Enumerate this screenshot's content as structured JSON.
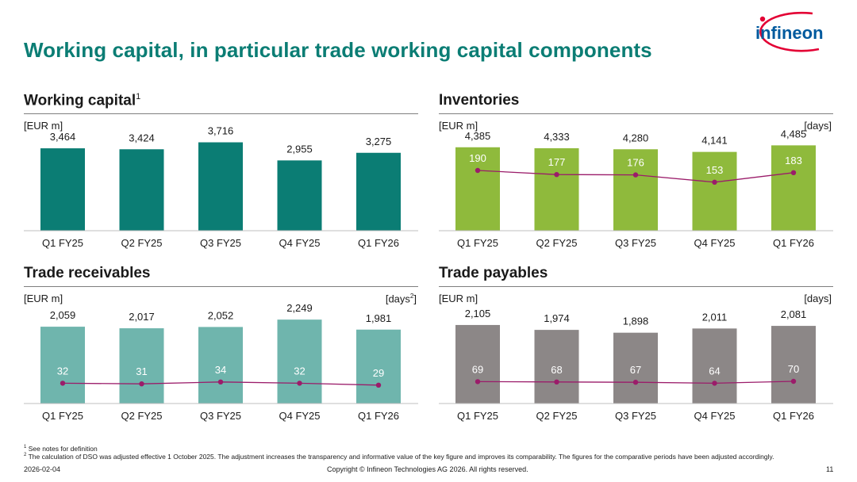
{
  "page": {
    "title": "Working capital, in particular trade working capital components",
    "logo_text": "infineon",
    "colors": {
      "brand": "#0b7d74",
      "logo_red": "#e30034",
      "logo_blue": "#005a9e"
    }
  },
  "chart_data": [
    {
      "type": "bar",
      "title": "Working capital",
      "title_sup": "1",
      "ylabel": "[EUR m]",
      "categories": [
        "Q1 FY25",
        "Q2 FY25",
        "Q3 FY25",
        "Q4 FY25",
        "Q1 FY26"
      ],
      "values": [
        3464,
        3424,
        3716,
        2955,
        3275
      ],
      "value_labels": [
        "3,464",
        "3,424",
        "3,716",
        "2,955",
        "3,275"
      ],
      "ylim": [
        0,
        4000
      ],
      "bar_color": "#0b7d74",
      "grid": false,
      "legend": "none"
    },
    {
      "type": "bar",
      "title": "Inventories",
      "ylabel": "[EUR m]",
      "y2label": "[days]",
      "categories": [
        "Q1 FY25",
        "Q2 FY25",
        "Q3 FY25",
        "Q4 FY25",
        "Q1 FY26"
      ],
      "values": [
        4385,
        4333,
        4280,
        4141,
        4485
      ],
      "value_labels": [
        "4,385",
        "4,333",
        "4,280",
        "4,141",
        "4,485"
      ],
      "ylim": [
        0,
        5000
      ],
      "bar_color": "#8fba3c",
      "days": [
        190,
        177,
        176,
        153,
        183
      ],
      "days_labels": [
        "190",
        "177",
        "176",
        "153",
        "183"
      ],
      "y2lim": [
        0,
        300
      ],
      "line_color": "#9b1c6a",
      "grid": false,
      "legend": "none"
    },
    {
      "type": "bar",
      "title": "Trade receivables",
      "ylabel": "[EUR m]",
      "y2label": "[days",
      "y2label_sup": "2",
      "y2label_end": "]",
      "categories": [
        "Q1 FY25",
        "Q2 FY25",
        "Q3 FY25",
        "Q4 FY25",
        "Q1 FY26"
      ],
      "values": [
        2059,
        2017,
        2052,
        2249,
        1981
      ],
      "value_labels": [
        "2,059",
        "2,017",
        "2,052",
        "2,249",
        "1,981"
      ],
      "ylim": [
        0,
        2550
      ],
      "bar_color": "#6fb5ad",
      "days": [
        32,
        31,
        34,
        32,
        29
      ],
      "days_labels": [
        "32",
        "31",
        "34",
        "32",
        "29"
      ],
      "y2lim": [
        0,
        150
      ],
      "line_color": "#9b1c6a",
      "grid": false,
      "legend": "none"
    },
    {
      "type": "bar",
      "title": "Trade payables",
      "ylabel": "[EUR m]",
      "y2label": "[days]",
      "categories": [
        "Q1 FY25",
        "Q2 FY25",
        "Q3 FY25",
        "Q4 FY25",
        "Q1 FY26"
      ],
      "values": [
        2105,
        1974,
        1898,
        2011,
        2081
      ],
      "value_labels": [
        "2,105",
        "1,974",
        "1,898",
        "2,011",
        "2,081"
      ],
      "ylim": [
        0,
        2550
      ],
      "bar_color": "#8c8787",
      "days": [
        69,
        68,
        67,
        64,
        70
      ],
      "days_labels": [
        "69",
        "68",
        "67",
        "64",
        "70"
      ],
      "y2lim": [
        0,
        300
      ],
      "line_color": "#9b1c6a",
      "grid": false,
      "legend": "none"
    }
  ],
  "footnotes": {
    "note1_sup": "1",
    "note1": "See notes for definition",
    "note2_sup": "2",
    "note2": "The calculation of DSO was adjusted effective 1 October 2025. The adjustment increases the transparency and informative value of the key figure and improves its comparability. The figures for the comparative periods have been adjusted accordingly."
  },
  "footer": {
    "date": "2026-02-04",
    "copyright": "Copyright © Infineon Technologies AG 2026. All rights reserved.",
    "page_number": "11"
  }
}
